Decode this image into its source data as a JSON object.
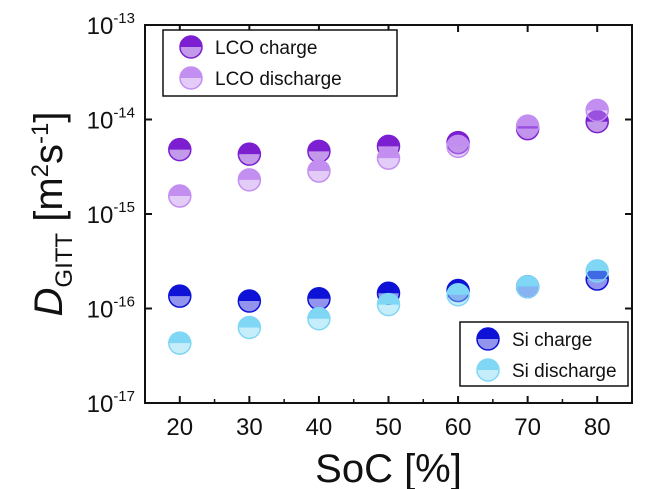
{
  "chart_data": {
    "type": "scatter",
    "xlabel": "SoC [%]",
    "ylabel": {
      "symbol": "D",
      "subscript": "GITT",
      "units": "[m",
      "sup1": "2",
      "mid": "s",
      "sup2": "-1",
      "close": "]"
    },
    "xlim": [
      15,
      85
    ],
    "ylim": [
      1e-17,
      1e-13
    ],
    "yscale": "log",
    "xticks": [
      20,
      30,
      40,
      50,
      60,
      70,
      80
    ],
    "yticks": [
      {
        "mantissa": "10",
        "exponent": "-17",
        "value": 1e-17
      },
      {
        "mantissa": "10",
        "exponent": "-16",
        "value": 1e-16
      },
      {
        "mantissa": "10",
        "exponent": "-15",
        "value": 1e-15
      },
      {
        "mantissa": "10",
        "exponent": "-14",
        "value": 1e-14
      },
      {
        "mantissa": "10",
        "exponent": "-13",
        "value": 1e-13
      }
    ],
    "x": [
      20,
      30,
      40,
      50,
      60,
      70,
      80
    ],
    "series": [
      {
        "name": "LCO charge",
        "color": "#7b1fd1",
        "fill_half": "top",
        "values": [
          4.8e-15,
          4.3e-15,
          4.6e-15,
          5.2e-15,
          5.7e-15,
          8e-15,
          9.5e-15
        ]
      },
      {
        "name": "LCO discharge",
        "color": "#c28ef0",
        "fill_half": "top",
        "values": [
          1.55e-15,
          2.3e-15,
          2.85e-15,
          3.9e-15,
          5.2e-15,
          8.5e-15,
          1.25e-14
        ]
      },
      {
        "name": "Si charge",
        "color": "#0d12d6",
        "fill_half": "top",
        "values": [
          1.35e-16,
          1.2e-16,
          1.27e-16,
          1.45e-16,
          1.55e-16,
          1.7e-16,
          2.05e-16
        ]
      },
      {
        "name": "Si discharge",
        "color": "#7fd6f5",
        "fill_half": "top",
        "values": [
          4.3e-17,
          6.3e-17,
          7.8e-17,
          1.1e-16,
          1.4e-16,
          1.7e-16,
          2.5e-16
        ]
      }
    ],
    "legends": [
      {
        "position": "top-left",
        "entries": [
          0,
          1
        ]
      },
      {
        "position": "bottom-right",
        "entries": [
          2,
          3
        ]
      }
    ],
    "grid": false
  }
}
